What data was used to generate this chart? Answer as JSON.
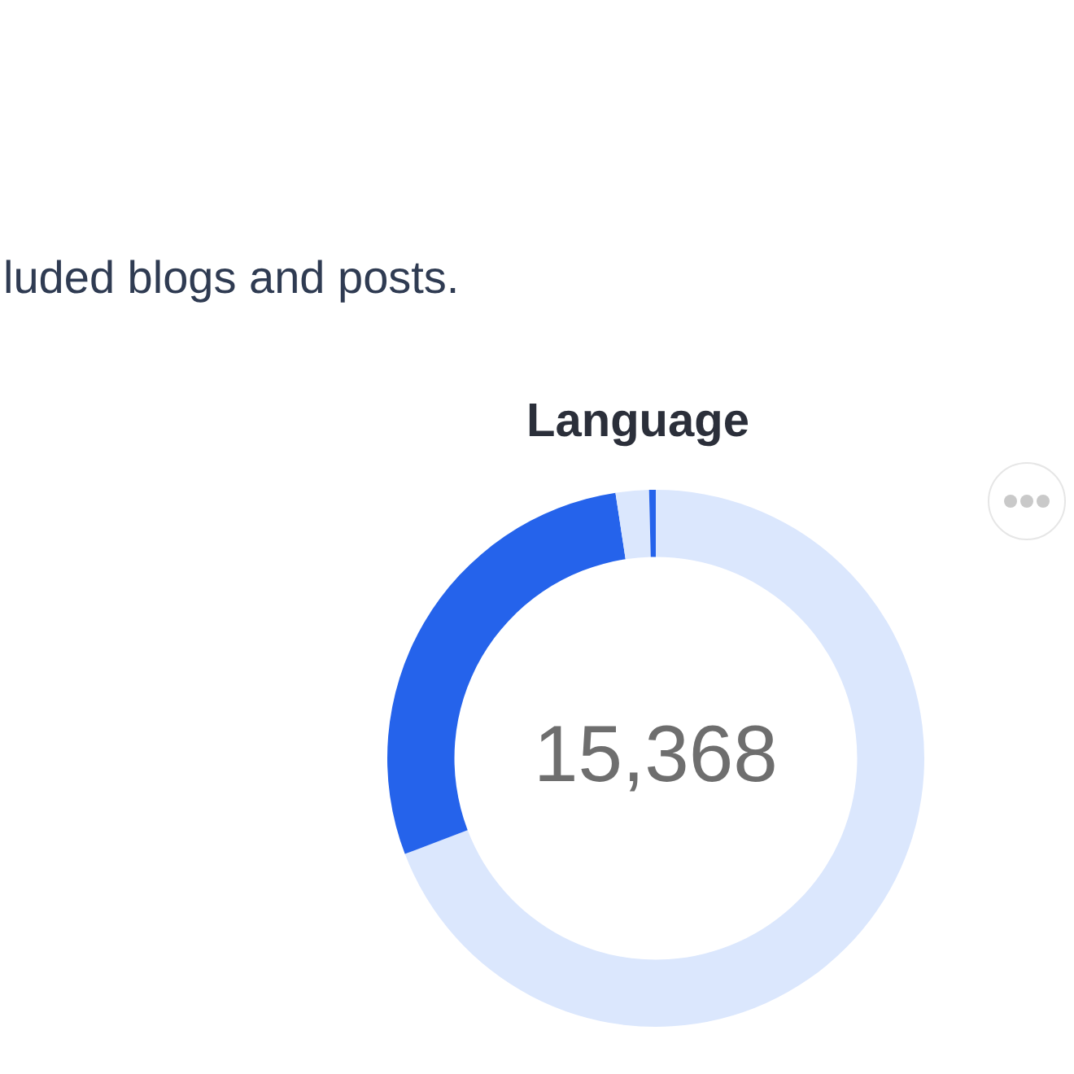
{
  "chart_data": {
    "type": "donut",
    "title": "Language",
    "annotations": [
      "luded blogs and posts.",
      "15,368"
    ],
    "categories": [
      null,
      null,
      null,
      null
    ],
    "values": [
      69.2,
      28.4,
      2.0,
      0.4
    ],
    "colors": [
      "#dbe7fd",
      "#2563eb",
      "#dbe7fd",
      "#2563eb"
    ]
  }
}
